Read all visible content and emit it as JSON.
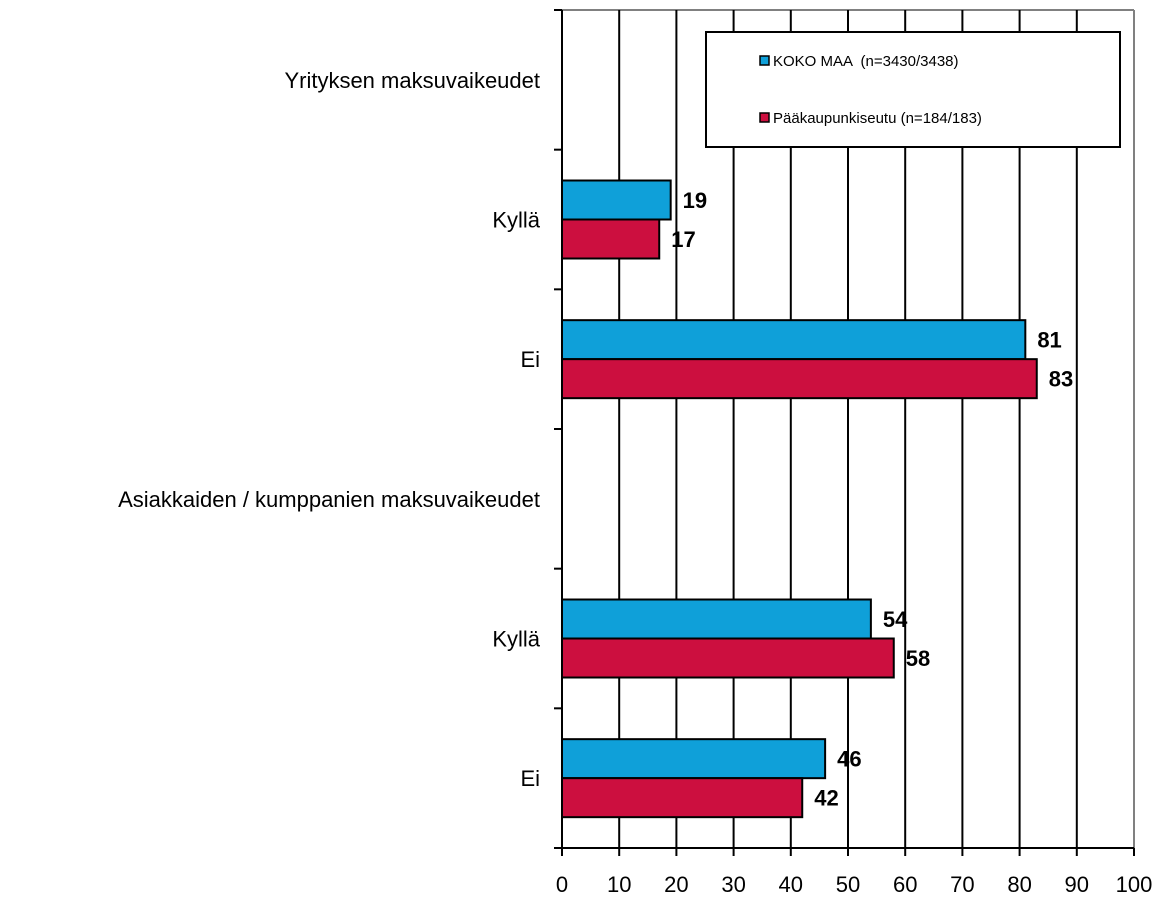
{
  "chart_data": {
    "type": "bar",
    "orientation": "horizontal",
    "categories": [
      "Yrityksen maksuvaikeudet",
      "Kyllä",
      "Ei",
      "Asiakkaiden / kumppanien maksuvaikeudet",
      "Kyllä",
      "Ei"
    ],
    "series": [
      {
        "name": "KOKO MAA  (n=3430/3438)",
        "color": "#0fa0d9",
        "values": [
          null,
          19,
          81,
          null,
          54,
          46
        ]
      },
      {
        "name": "Pääkaupunkiseutu (n=184/183)",
        "color": "#cc0f3f",
        "values": [
          null,
          17,
          83,
          null,
          58,
          42
        ]
      }
    ],
    "x_ticks": [
      "0",
      "10",
      "20",
      "30",
      "40",
      "50",
      "60",
      "70",
      "80",
      "90",
      "100"
    ],
    "xlim": [
      0,
      100
    ],
    "grid": true,
    "legend_position": "top-right",
    "data_labels": true
  }
}
